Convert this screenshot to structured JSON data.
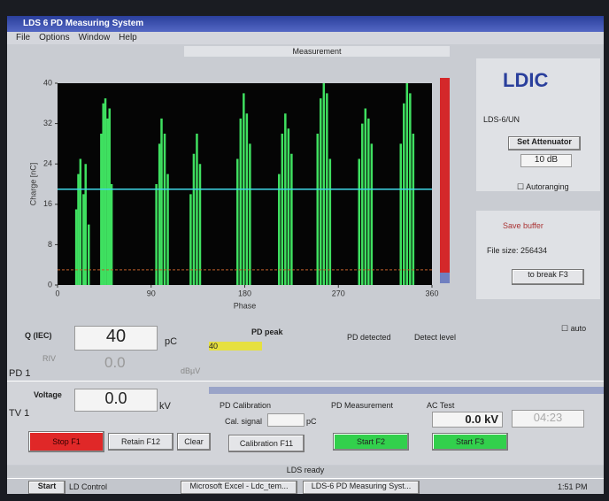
{
  "window": {
    "title": "LDS 6 PD Measuring System",
    "menu": [
      "File",
      "Options",
      "Window",
      "Help"
    ],
    "tab": "Measurement"
  },
  "plot": {
    "ylabel": "Charge [nC]",
    "xlabel": "Phase",
    "xlim": [
      0,
      360
    ],
    "ylim": [
      0,
      40
    ],
    "xticks": [
      0,
      90,
      180,
      270,
      360
    ],
    "yticks": [
      0,
      8,
      16,
      24,
      32,
      40
    ],
    "threshold": 19,
    "noise_level": 3,
    "pulses": {
      "x": [
        18,
        20,
        22,
        25,
        27,
        30,
        42,
        44,
        46,
        48,
        50,
        52,
        95,
        98,
        100,
        103,
        106,
        128,
        131,
        134,
        137,
        173,
        176,
        179,
        182,
        185,
        213,
        216,
        219,
        222,
        225,
        250,
        253,
        256,
        259,
        262,
        290,
        293,
        296,
        299,
        302,
        330,
        333,
        336,
        339,
        342
      ],
      "values": [
        15,
        22,
        25,
        18,
        24,
        12,
        30,
        36,
        37,
        33,
        35,
        20,
        20,
        28,
        33,
        30,
        22,
        18,
        26,
        30,
        24,
        25,
        33,
        38,
        34,
        28,
        22,
        30,
        34,
        31,
        26,
        30,
        37,
        40,
        38,
        25,
        25,
        32,
        35,
        33,
        28,
        28,
        36,
        40,
        38,
        30
      ]
    }
  },
  "right_panel": {
    "logo": "LDIC",
    "device": "LDS-6/UN",
    "attenuator_button": "Set Attenuator",
    "attenuator_value": "10 dB",
    "autoranging": "Autoranging",
    "save_label": "Save buffer",
    "file_size": "File size: 256434",
    "break_button": "to break F3",
    "auto": "auto"
  },
  "readings": {
    "q_label": "Q (IEC)",
    "q_value": "40",
    "q_unit": "pC",
    "riv_label": "RIV",
    "riv_value": "0.0",
    "riv_unit": "dBµV",
    "pd_channel": "PD 1",
    "pd_peak": "PD peak",
    "peak_value": "40",
    "pd_detected": "PD detected",
    "detect_level": "Detect level",
    "voltage_label": "Voltage",
    "voltage_value": "0.0",
    "voltage_unit": "kV",
    "tv_channel": "TV 1"
  },
  "buttons": {
    "stop": "Stop F1",
    "retain": "Retain F12",
    "clear": "Clear"
  },
  "calibration": {
    "title": "PD Calibration",
    "cal_signal": "Cal. signal",
    "unit": "pC",
    "button": "Calibration F11"
  },
  "measurement": {
    "title": "PD Measurement",
    "button": "Start F2"
  },
  "ac_test": {
    "title": "AC Test",
    "voltage": "0.0 kV",
    "time": "04:23",
    "button": "Start F3"
  },
  "status": {
    "text": "LDS ready"
  },
  "taskbar": {
    "start": "Start",
    "items": [
      "LD Control",
      "Microsoft Excel - Ldc_tem...",
      "LDS-6 PD Measuring Syst..."
    ],
    "clock": "1:51 PM"
  }
}
